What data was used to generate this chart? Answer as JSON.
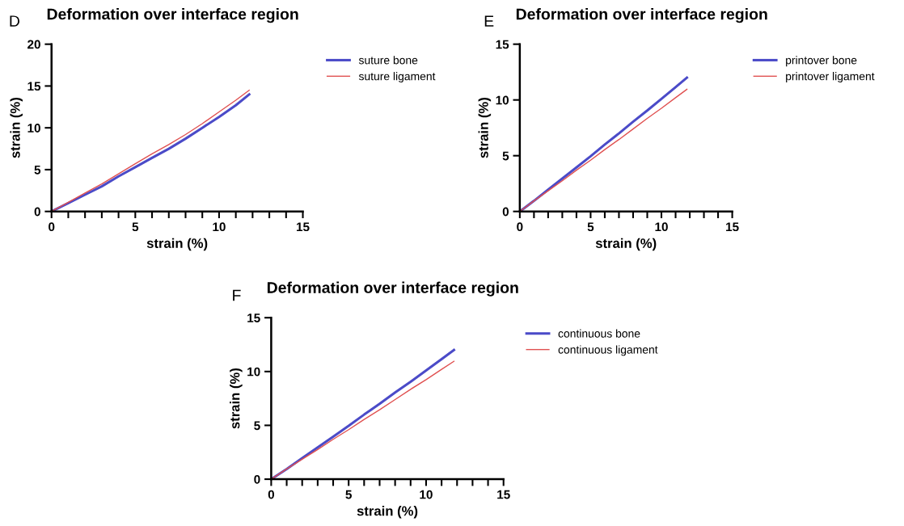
{
  "chart_data": [
    {
      "type": "line",
      "title": "Deformation over interface region",
      "annotations": [
        "D"
      ],
      "xlabel": "strain (%)",
      "ylabel": "strain (%)",
      "x": [
        0,
        1,
        2,
        3,
        4,
        5,
        6,
        7,
        8,
        9,
        10,
        11,
        11.8
      ],
      "series": [
        {
          "name": "suture bone",
          "color": "#4b4bc8",
          "values": [
            0,
            1.0,
            2.0,
            3.0,
            4.2,
            5.3,
            6.4,
            7.5,
            8.7,
            10.0,
            11.3,
            12.7,
            14.0
          ]
        },
        {
          "name": "suture ligament",
          "color": "#e05050",
          "values": [
            0,
            1.1,
            2.2,
            3.3,
            4.5,
            5.7,
            6.9,
            8.0,
            9.2,
            10.5,
            11.9,
            13.3,
            14.5
          ]
        }
      ],
      "xlim": [
        0,
        15
      ],
      "ylim": [
        0,
        20
      ],
      "xticks": [
        0,
        {
          "value": 1,
          "label": null
        },
        {
          "value": 2,
          "label": null
        },
        {
          "value": 3,
          "label": null
        },
        {
          "value": 4,
          "label": null
        },
        5,
        {
          "value": 6,
          "label": null
        },
        {
          "value": 7,
          "label": null
        },
        {
          "value": 8,
          "label": null
        },
        {
          "value": 9,
          "label": null
        },
        10,
        {
          "value": 11,
          "label": null
        },
        {
          "value": 12,
          "label": null
        },
        {
          "value": 13,
          "label": null
        },
        {
          "value": 14,
          "label": null
        },
        15
      ],
      "yticks": [
        0,
        5,
        10,
        15,
        20
      ],
      "grid": false,
      "legend": "right",
      "marker": "none",
      "line_style": "solid"
    },
    {
      "type": "line",
      "title": "Deformation over interface region",
      "annotations": [
        "E"
      ],
      "xlabel": "strain (%)",
      "ylabel": "strain (%)",
      "x": [
        0,
        1,
        2,
        3,
        4,
        5,
        6,
        7,
        8,
        9,
        10,
        11,
        11.8
      ],
      "series": [
        {
          "name": "printover bone",
          "color": "#4b4bc8",
          "values": [
            0,
            0.95,
            1.95,
            2.95,
            3.95,
            4.95,
            6.0,
            7.0,
            8.05,
            9.05,
            10.1,
            11.15,
            12.0
          ]
        },
        {
          "name": "printover ligament",
          "color": "#e05050",
          "values": [
            0,
            0.95,
            1.85,
            2.75,
            3.7,
            4.6,
            5.55,
            6.45,
            7.4,
            8.35,
            9.25,
            10.2,
            10.95
          ]
        }
      ],
      "xlim": [
        0,
        15
      ],
      "ylim": [
        0,
        15
      ],
      "xticks": [
        0,
        {
          "value": 1,
          "label": null
        },
        {
          "value": 2,
          "label": null
        },
        {
          "value": 3,
          "label": null
        },
        {
          "value": 4,
          "label": null
        },
        5,
        {
          "value": 6,
          "label": null
        },
        {
          "value": 7,
          "label": null
        },
        {
          "value": 8,
          "label": null
        },
        {
          "value": 9,
          "label": null
        },
        10,
        {
          "value": 11,
          "label": null
        },
        {
          "value": 12,
          "label": null
        },
        {
          "value": 13,
          "label": null
        },
        {
          "value": 14,
          "label": null
        },
        15
      ],
      "yticks": [
        0,
        5,
        10,
        15
      ],
      "grid": false,
      "legend": "right",
      "marker": "none",
      "line_style": "solid"
    },
    {
      "type": "line",
      "title": "Deformation over interface region",
      "annotations": [
        "F"
      ],
      "xlabel": "strain (%)",
      "ylabel": "strain (%)",
      "x": [
        0,
        1,
        2,
        3,
        4,
        5,
        6,
        7,
        8,
        9,
        10,
        11,
        11.8
      ],
      "series": [
        {
          "name": "continuous bone",
          "color": "#4b4bc8",
          "values": [
            0,
            0.95,
            1.95,
            2.95,
            3.95,
            4.95,
            6.0,
            7.0,
            8.05,
            9.05,
            10.1,
            11.15,
            12.0
          ]
        },
        {
          "name": "continuous ligament",
          "color": "#e05050",
          "values": [
            0,
            0.95,
            1.85,
            2.75,
            3.7,
            4.6,
            5.55,
            6.45,
            7.4,
            8.35,
            9.25,
            10.2,
            10.95
          ]
        }
      ],
      "xlim": [
        0,
        15
      ],
      "ylim": [
        0,
        15
      ],
      "xticks": [
        0,
        {
          "value": 1,
          "label": null
        },
        {
          "value": 2,
          "label": null
        },
        {
          "value": 3,
          "label": null
        },
        {
          "value": 4,
          "label": null
        },
        5,
        {
          "value": 6,
          "label": null
        },
        {
          "value": 7,
          "label": null
        },
        {
          "value": 8,
          "label": null
        },
        {
          "value": 9,
          "label": null
        },
        10,
        {
          "value": 11,
          "label": null
        },
        {
          "value": 12,
          "label": null
        },
        {
          "value": 13,
          "label": null
        },
        {
          "value": 14,
          "label": null
        },
        15
      ],
      "yticks": [
        0,
        5,
        10,
        15
      ],
      "grid": false,
      "legend": "right",
      "marker": "none",
      "line_style": "solid"
    }
  ]
}
